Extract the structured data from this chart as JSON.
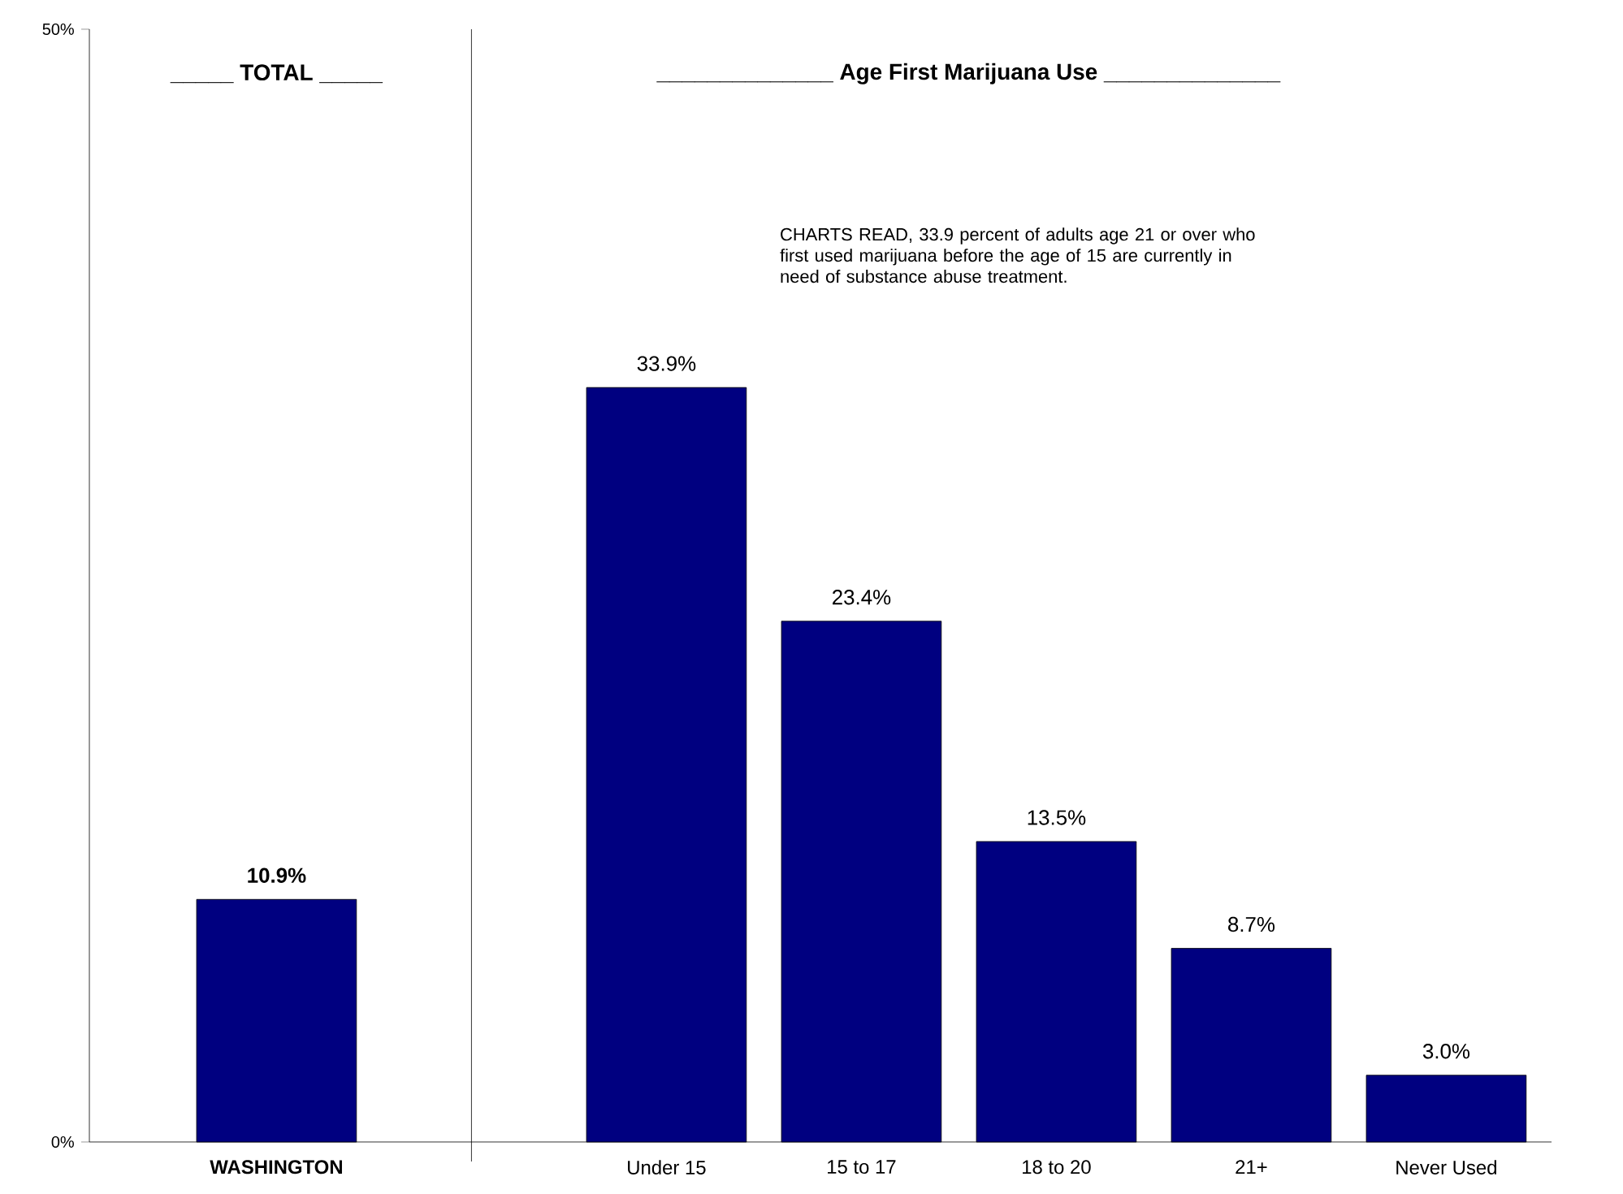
{
  "chart_data": {
    "type": "bar",
    "categories": [
      "WASHINGTON",
      null,
      "Under 15",
      "15 to 17",
      "18 to 20",
      "21+",
      "Never Used"
    ],
    "values": [
      10.9,
      null,
      33.9,
      23.4,
      13.5,
      8.7,
      3.0
    ],
    "value_labels": [
      "10.9%",
      null,
      "33.9%",
      "23.4%",
      "13.5%",
      "8.7%",
      "3.0%"
    ],
    "color": "#000080",
    "ylim": [
      0,
      50
    ],
    "yticks": [
      {
        "value": 0,
        "label": "0%"
      },
      {
        "value": 50,
        "label": "50%"
      }
    ],
    "annotations": [
      "_____ TOTAL _____",
      "______________ Age First Marijuana Use ______________",
      "CHARTS READ, 33.9 percent of adults age 21 or over who first used marijuana before the age of 15 are currently in need of substance abuse treatment."
    ]
  }
}
